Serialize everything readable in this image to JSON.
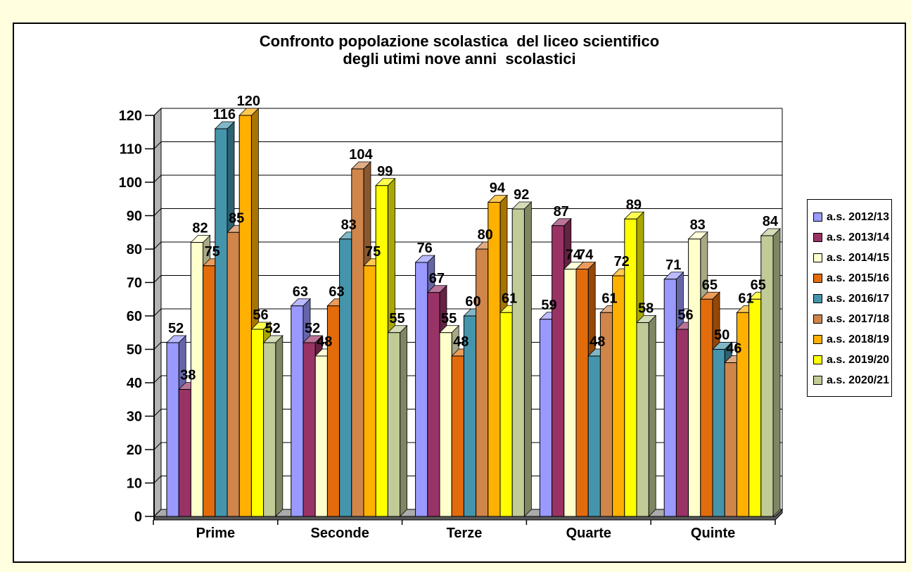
{
  "page": {
    "background_color": "#FFFFE0",
    "frame_background": "#FFFFFF",
    "frame_border_color": "#000000"
  },
  "chart_data": {
    "type": "bar",
    "style": "3d-clustered-column",
    "title_lines": [
      "Confronto popolazione scolastica  del liceo scientifico",
      "degli utimi nove anni  scolastici"
    ],
    "xlabel": "",
    "ylabel": "",
    "categories": [
      "Prime",
      "Seconde",
      "Terze",
      "Quarte",
      "Quinte"
    ],
    "series": [
      {
        "name": "a.s. 2012/13",
        "color": "#9999FF",
        "values": [
          52,
          63,
          76,
          59,
          71
        ]
      },
      {
        "name": "a.s. 2013/14",
        "color": "#993366",
        "values": [
          38,
          52,
          67,
          87,
          56
        ]
      },
      {
        "name": "a.s. 2014/15",
        "color": "#FFFFCC",
        "values": [
          82,
          48,
          55,
          74,
          83
        ]
      },
      {
        "name": "a.s. 2015/16",
        "color": "#E26C0C",
        "values": [
          75,
          63,
          48,
          74,
          65
        ]
      },
      {
        "name": "a.s. 2016/17",
        "color": "#4495AC",
        "values": [
          116,
          83,
          60,
          48,
          50
        ]
      },
      {
        "name": "a.s. 2017/18",
        "color": "#D0854A",
        "values": [
          85,
          104,
          80,
          61,
          46
        ]
      },
      {
        "name": "a.s. 2018/19",
        "color": "#FFB000",
        "values": [
          120,
          75,
          94,
          72,
          61
        ]
      },
      {
        "name": "a.s. 2019/20",
        "color": "#FFFF00",
        "values": [
          56,
          99,
          61,
          89,
          65
        ]
      },
      {
        "name": "a.s. 2020/21",
        "color": "#C0CB97",
        "values": [
          52,
          55,
          92,
          58,
          84
        ]
      }
    ],
    "ylim": [
      0,
      120
    ],
    "ytick_step": 10,
    "y_ticks": [
      0,
      10,
      20,
      30,
      40,
      50,
      60,
      70,
      80,
      90,
      100,
      110,
      120
    ],
    "grid": true,
    "data_labels": true,
    "legend_position": "right",
    "wall_color": "#B3B3B3",
    "floor_color": "#ABABAB",
    "floor_edge_color": "#595959",
    "axis_color": "#000000"
  }
}
